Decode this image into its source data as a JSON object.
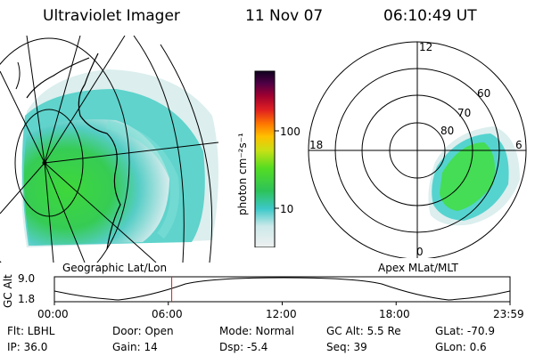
{
  "header": {
    "title": "Ultraviolet Imager",
    "date": "11 Nov 07",
    "time": "06:10:49 UT"
  },
  "colorbar": {
    "unit_label": "photon cm⁻²s⁻¹",
    "ticks": [
      "100",
      "10"
    ]
  },
  "left_panel": {
    "caption": "Geographic Lat/Lon"
  },
  "right_panel": {
    "caption": "Apex MLat/MLT",
    "mlt_labels": {
      "top": "12",
      "left": "18",
      "right": "6",
      "bottom": "0"
    },
    "lat_labels": [
      "80",
      "70",
      "60"
    ]
  },
  "timeline": {
    "ylabel": "GC Alt",
    "y_top": "9.0",
    "y_bottom": "1.8",
    "x_ticks": [
      "00:00",
      "06:00",
      "12:00",
      "18:00",
      "23:59"
    ],
    "current_time_hours": 6.18
  },
  "status": {
    "flt": "Flt: LBHL",
    "ip": "IP: 36.0",
    "door": "Door: Open",
    "gain": "Gain: 14",
    "mode": "Mode: Normal",
    "dsp": "Dsp:   -5.4",
    "gcalt": "GC Alt: 5.5 Re",
    "seq": "Seq: 39",
    "glat": "GLat:  -70.9",
    "glon": "GLon:   0.6"
  },
  "colors": {
    "marker": "#cc2222",
    "aurora_bright": "#33dd44",
    "aurora_mid": "#44cccc",
    "aurora_faint": "#d8eeee"
  }
}
